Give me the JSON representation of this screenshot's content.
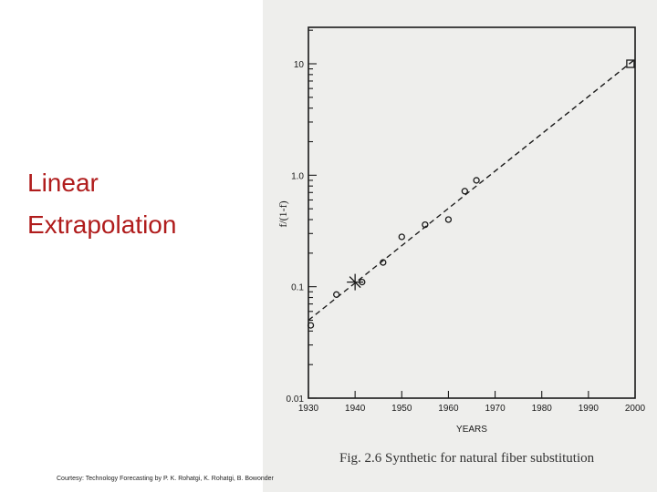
{
  "slide": {
    "title_line1": "Linear",
    "title_line2": "Extrapolation",
    "courtesy": "Courtesy: Technology Forecasting by P. K. Rohatgi, K. Rohatgi, B. Bowonder",
    "caption": "Fig. 2.6 Synthetic for natural fiber substitution"
  },
  "colors": {
    "title": "#b01c1c",
    "ink": "#1a1a1a",
    "scan_bg": "#eeeeec"
  },
  "chart_data": {
    "type": "scatter",
    "title": "",
    "xlabel": "YEARS",
    "ylabel": "f/(1-f)",
    "xlim": [
      1930,
      2000
    ],
    "ylim": [
      0.01,
      10
    ],
    "yscale": "log",
    "x_ticks": [
      1930,
      1940,
      1950,
      1960,
      1970,
      1980,
      1990,
      2000
    ],
    "x_tick_labels": [
      "1930",
      "1940",
      "1950",
      "1960",
      "1970",
      "1980",
      "1990",
      "2000"
    ],
    "y_ticks": [
      0.01,
      0.1,
      1.0,
      10
    ],
    "y_tick_labels": [
      "0.01",
      "0.1",
      "1.0",
      "10"
    ],
    "grid": false,
    "points": {
      "x": [
        1930.5,
        1936,
        1941.5,
        1946,
        1950,
        1955,
        1960,
        1963.5,
        1966
      ],
      "y": [
        0.045,
        0.085,
        0.11,
        0.165,
        0.28,
        0.36,
        0.4,
        0.72,
        0.9
      ]
    },
    "marked_point": {
      "x": 1940,
      "y": 0.11
    },
    "endpoint_marker": {
      "x": 1999,
      "y": 10
    },
    "trend_line": {
      "x": [
        1930,
        2000
      ],
      "y": [
        0.05,
        11
      ]
    }
  }
}
